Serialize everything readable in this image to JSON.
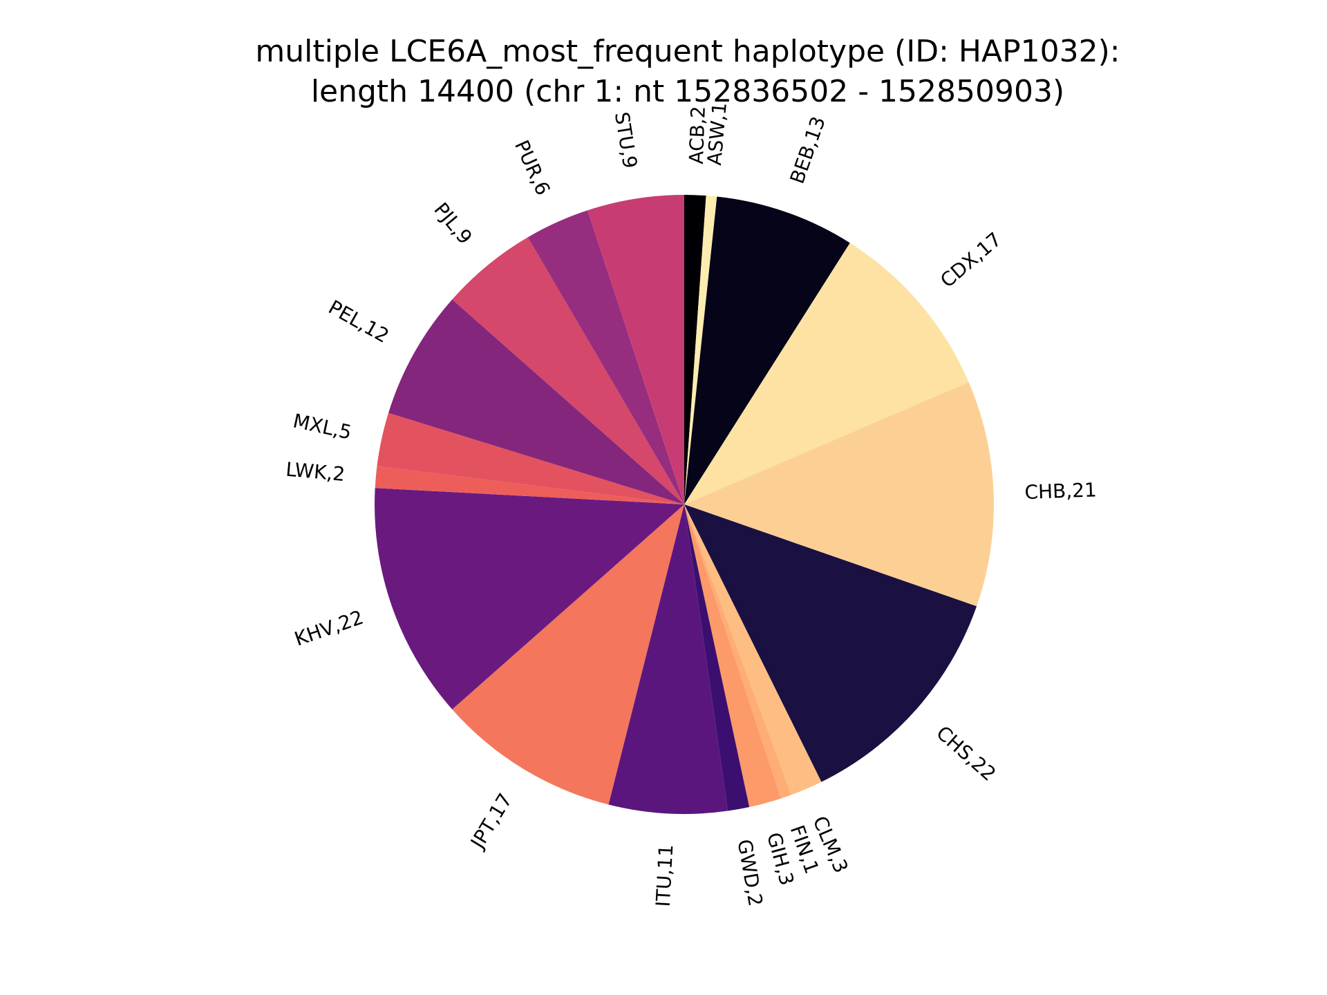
{
  "chart_data": {
    "type": "pie",
    "title": "multiple LCE6A_most_frequent haplotype (ID: HAP1032):",
    "subtitle": "length 14400 (chr 1: nt 152836502 - 152850903)",
    "start_angle_deg": 90,
    "direction": "clockwise",
    "slices": [
      {
        "name": "ACB",
        "value": 2,
        "label": "ACB,2",
        "color": "#000004"
      },
      {
        "name": "ASW",
        "value": 1,
        "label": "ASW,1",
        "color": "#fcecaf"
      },
      {
        "name": "BEB",
        "value": 13,
        "label": "BEB,13",
        "color": "#050418"
      },
      {
        "name": "CDX",
        "value": 17,
        "label": "CDX,17",
        "color": "#fde2a4"
      },
      {
        "name": "CHB",
        "value": 21,
        "label": "CHB,21",
        "color": "#fcd094"
      },
      {
        "name": "CHS",
        "value": 22,
        "label": "CHS,22",
        "color": "#1b1042"
      },
      {
        "name": "CLM",
        "value": 3,
        "label": "CLM,3",
        "color": "#febd82"
      },
      {
        "name": "FIN",
        "value": 1,
        "label": "FIN,1",
        "color": "#feae74"
      },
      {
        "name": "GIH",
        "value": 3,
        "label": "GIH,3",
        "color": "#fd9a6a"
      },
      {
        "name": "GWD",
        "value": 2,
        "label": "GWD,2",
        "color": "#3b0f70"
      },
      {
        "name": "ITU",
        "value": 11,
        "label": "ITU,11",
        "color": "#5b167e"
      },
      {
        "name": "JPT",
        "value": 17,
        "label": "JPT,17",
        "color": "#f4765d"
      },
      {
        "name": "KHV",
        "value": 22,
        "label": "KHV,22",
        "color": "#6a1a7f"
      },
      {
        "name": "LWK",
        "value": 2,
        "label": "LWK,2",
        "color": "#ed5e5b"
      },
      {
        "name": "MXL",
        "value": 5,
        "label": "MXL,5",
        "color": "#e3535f"
      },
      {
        "name": "PEL",
        "value": 12,
        "label": "PEL,12",
        "color": "#85267d"
      },
      {
        "name": "PJL",
        "value": 9,
        "label": "PJL,9",
        "color": "#d5476b"
      },
      {
        "name": "PUR",
        "value": 6,
        "label": "PUR,6",
        "color": "#972d7f"
      },
      {
        "name": "STU",
        "value": 9,
        "label": "STU,9",
        "color": "#c73d73"
      }
    ]
  }
}
